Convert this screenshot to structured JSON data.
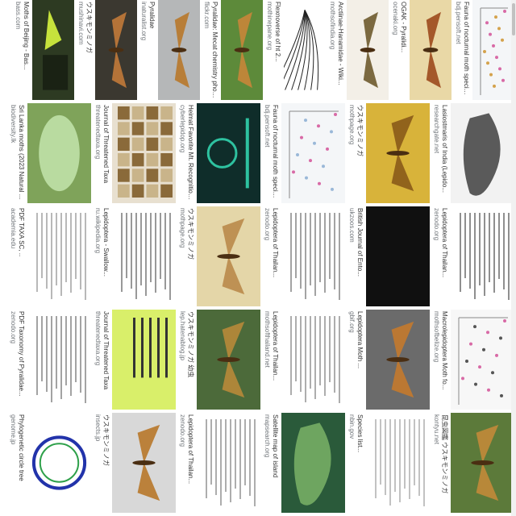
{
  "grid": {
    "columns": [
      {
        "tiles": [
          {
            "caption": "Fauna of nocturnal moth species collected in seven natura...",
            "source": "bdj.pensoft.net",
            "kind": "chart",
            "bg": "#f4f6f8",
            "accent": "#d4a24c"
          },
          {
            "caption": "OGAK - Pyralidi...",
            "source": "ocenaki.org",
            "kind": "moth",
            "bg": "#e9d8a6",
            "accent": "#9c4a1d"
          },
          {
            "caption": "Arctiinae-Hanamidae - Wiki...",
            "source": "mothsofindia.org",
            "kind": "moth",
            "bg": "#f3efe7",
            "accent": "#6e5a2e"
          },
          {
            "caption": "Flexnoverse of ht 2...",
            "source": "mothinepane.org",
            "kind": "drawing",
            "bg": "#ffffff",
            "accent": "#222222"
          },
          {
            "caption": "Pyralidae: Mecat chemistry photogr...",
            "source": "flickr.com",
            "kind": "moth",
            "bg": "#5d8a3a",
            "accent": "#c8853a"
          },
          {
            "caption": "Pyralidae",
            "source": "inaturalist.org",
            "kind": "moth",
            "bg": "#b5b7b8",
            "accent": "#b8782a"
          },
          {
            "caption": "ウスキモンミノガ",
            "source": "mushinavi.com",
            "kind": "moth",
            "bg": "#3b3830",
            "accent": "#c27a3a"
          },
          {
            "caption": "Moths of Beijing - Bas...",
            "source": "bass.com",
            "kind": "poster",
            "bg": "#2d3a22",
            "accent": "#c6e23c"
          }
        ]
      },
      {
        "tiles": [
          {
            "caption": "Lasiostmaris of India (Lepido...",
            "source": "researchgate.net",
            "kind": "map",
            "bg": "#f2f2f2",
            "accent": "#333333"
          },
          {
            "caption": "ウスキモンミノガ",
            "source": "mothpage.org",
            "kind": "moth",
            "bg": "#d8b33a",
            "accent": "#8a5a1a"
          },
          {
            "caption": "Fauna of nocturnal moth species collected in seven natura...",
            "source": "bdj.pensoft.net",
            "kind": "chart",
            "bg": "#f4f6f8",
            "accent": "#9ab8d8"
          },
          {
            "caption": "Heimat Favorite Mt. Recognition in Germany...",
            "source": "cyberlepidop.org",
            "kind": "logo",
            "bg": "#0f2d2a",
            "accent": "#2ec2a0"
          },
          {
            "caption": "Journal of Threatened Taxa",
            "source": "threatenedtaxa.org",
            "kind": "grid",
            "bg": "#e8e0d0",
            "accent": "#8a6a3a"
          },
          {
            "caption": "Sri Lanka moths (2023 Natural ...",
            "source": "biodiversity.lk",
            "kind": "leaf",
            "bg": "#7fa35a",
            "accent": "#b9dba0"
          }
        ]
      },
      {
        "tiles": [
          {
            "caption": "Lepidoptera of Thailan...",
            "source": "zenodo.org",
            "kind": "doc",
            "bg": "#ffffff",
            "accent": "#444444"
          },
          {
            "caption": "British Journal of Ento...",
            "source": "ukzoos.com",
            "kind": "dark",
            "bg": "#101010",
            "accent": "#333333"
          },
          {
            "caption": "Lepidoptera of Thailan...",
            "source": "zenodo.org",
            "kind": "doc",
            "bg": "#ffffff",
            "accent": "#666666"
          },
          {
            "caption": "ウスキモンミノガ",
            "source": "mothpage.org",
            "kind": "moth",
            "bg": "#e4d6a8",
            "accent": "#b98a4a"
          },
          {
            "caption": "Lepidoptera - Swallow...",
            "source": "ru.wikipedia.org",
            "kind": "doc",
            "bg": "#ffffff",
            "accent": "#555555"
          },
          {
            "caption": "PDF TAXA SC, ..",
            "source": "academia.edu",
            "kind": "doc",
            "bg": "#ffffff",
            "accent": "#888888"
          }
        ]
      },
      {
        "tiles": [
          {
            "caption": "Macrolepidoptera Moth fo...",
            "source": "mothsofbelize.org",
            "kind": "scatter",
            "bg": "#f7f7f7",
            "accent": "#555555"
          },
          {
            "caption": "Lepidoptera Moth ...",
            "source": "gbif.org",
            "kind": "moth",
            "bg": "#6b6b6b",
            "accent": "#c47a2e"
          },
          {
            "caption": "Lepidoptera of Thailan...",
            "source": "mothsofthailand.net",
            "kind": "doc",
            "bg": "#ffffff",
            "accent": "#777777"
          },
          {
            "caption": "ウスキモンミノガ 幼虫",
            "source": "lep.hatenablog.jp",
            "kind": "moth",
            "bg": "#4c6a3a",
            "accent": "#b88a3a"
          },
          {
            "caption": "Journal of Threatened Taxa",
            "source": "threatenedtaxa.org",
            "kind": "lime",
            "bg": "#d9ef6a",
            "accent": "#333333"
          },
          {
            "caption": "PDF Taxonomy of Pyralidae...",
            "source": "zenodo.org",
            "kind": "doc",
            "bg": "#ffffff",
            "accent": "#666666"
          }
        ]
      },
      {
        "tiles": [
          {
            "caption": "昆虫図鑑 ウスキモンミノガ",
            "source": "kontyu.net",
            "kind": "moth",
            "bg": "#5c7a3a",
            "accent": "#c28a3a"
          },
          {
            "caption": "Species list...",
            "source": "nbin.gov",
            "kind": "doc",
            "bg": "#ffffff",
            "accent": "#999999"
          },
          {
            "caption": "Satellite map of island",
            "source": "mapsearch.org",
            "kind": "map2",
            "bg": "#2a5a3a",
            "accent": "#7fb86a"
          },
          {
            "caption": "Lepidoptera of Thailan...",
            "source": "zenodo.org",
            "kind": "doc",
            "bg": "#ffffff",
            "accent": "#777777"
          },
          {
            "caption": "ウスキモンミノガ",
            "source": "insects.jp",
            "kind": "moth",
            "bg": "#d8d8d8",
            "accent": "#b8782a"
          },
          {
            "caption": "Phylogenetic circle tree",
            "source": "genome.jp",
            "kind": "circle",
            "bg": "#ffffff",
            "accent": "#2233aa"
          }
        ]
      }
    ]
  },
  "colors": {
    "caption": "#333333",
    "source": "#70757a",
    "background": "#ffffff"
  }
}
